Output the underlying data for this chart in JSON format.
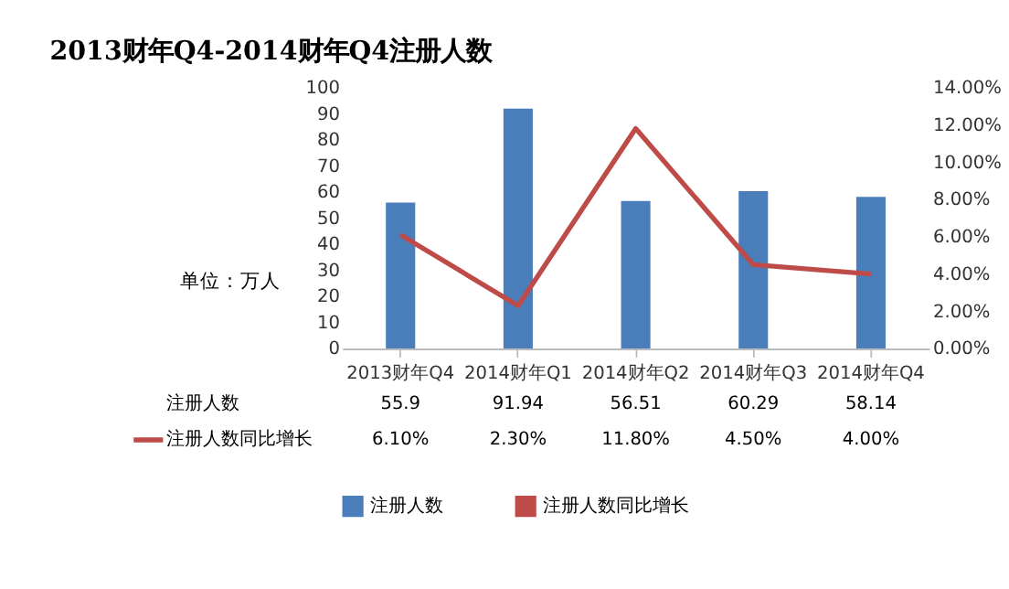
{
  "chart_data": {
    "type": "bar",
    "title": "2013财年Q4-2014财年Q4注册人数",
    "ylabel": "单位：万人",
    "categories": [
      "2013财年Q4",
      "2014财年Q1",
      "2014财年Q2",
      "2014财年Q3",
      "2014财年Q4"
    ],
    "series": [
      {
        "name": "注册人数",
        "color": "#4a7ebb",
        "values": [
          55.9,
          91.94,
          56.51,
          60.29,
          58.14
        ],
        "value_labels": [
          "55.9",
          "91.94",
          "56.51",
          "60.29",
          "58.14"
        ]
      },
      {
        "name": "注册人数同比增长",
        "type": "line",
        "axis": "y2",
        "color": "#be4b48",
        "values": [
          6.1,
          2.3,
          11.8,
          4.5,
          4.0
        ],
        "value_labels": [
          "6.10%",
          "2.30%",
          "11.80%",
          "4.50%",
          "4.00%"
        ]
      }
    ],
    "ylim": [
      0,
      100
    ],
    "yticks": [
      0,
      10,
      20,
      30,
      40,
      50,
      60,
      70,
      80,
      90,
      100
    ],
    "y2lim": [
      0,
      14
    ],
    "y2ticks": [
      {
        "value": 0,
        "label": "0.00%"
      },
      {
        "value": 2,
        "label": "2.00%"
      },
      {
        "value": 4,
        "label": "4.00%"
      },
      {
        "value": 6,
        "label": "6.00%"
      },
      {
        "value": 8,
        "label": "8.00%"
      },
      {
        "value": 10,
        "label": "10.00%"
      },
      {
        "value": 12,
        "label": "12.00%"
      },
      {
        "value": 14,
        "label": "14.00%"
      }
    ],
    "legend": "bottom",
    "grid": false,
    "marker": "none",
    "line_style": "solid"
  }
}
